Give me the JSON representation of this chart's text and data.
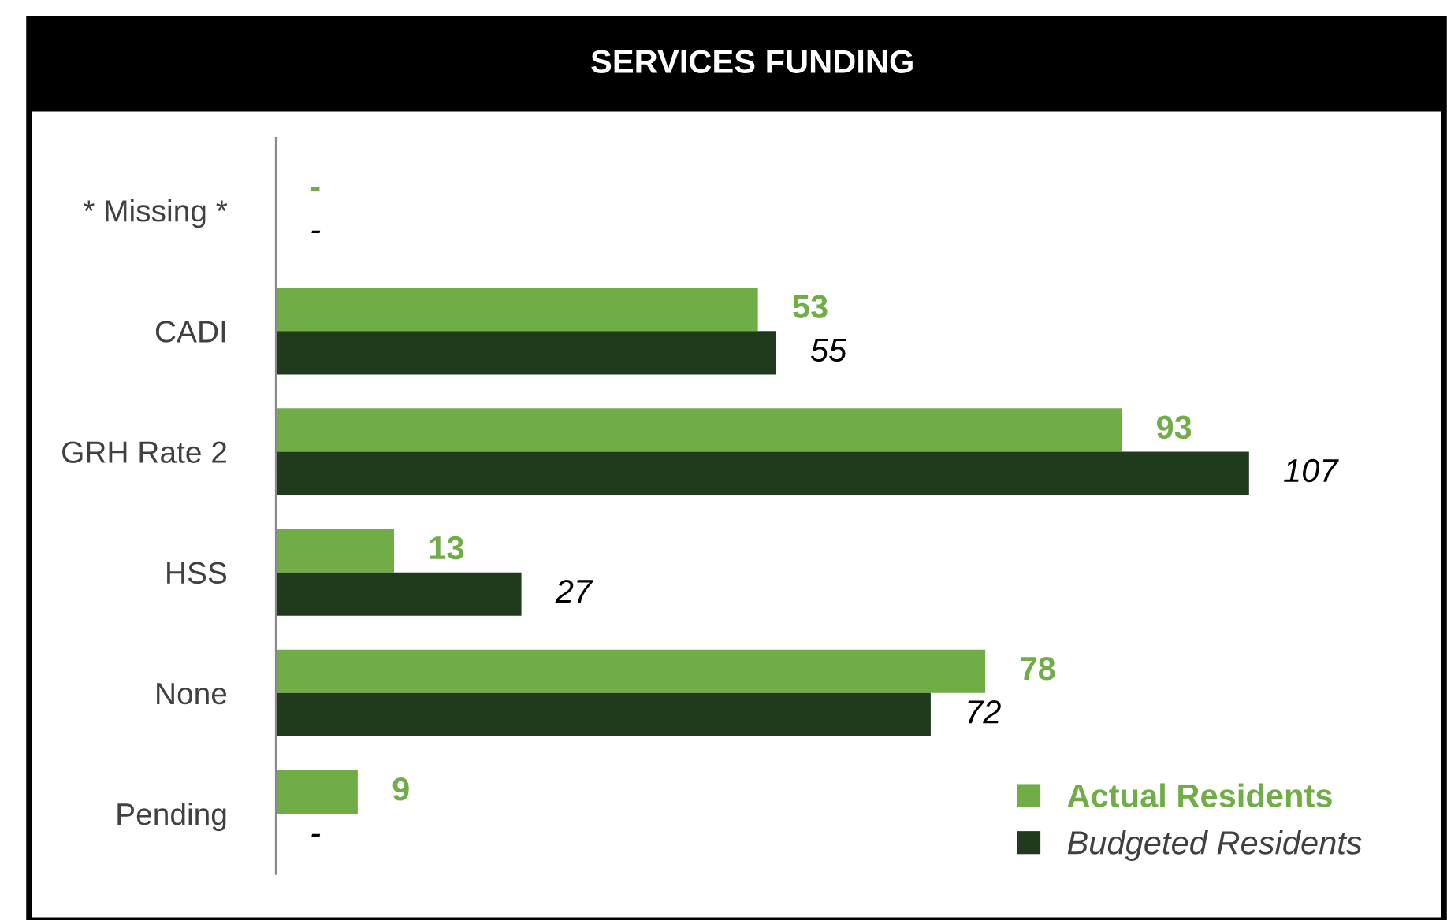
{
  "chart_data": {
    "type": "bar",
    "orientation": "horizontal",
    "title": "SERVICES FUNDING",
    "categories": [
      "* Missing *",
      "CADI",
      "GRH Rate 2",
      "HSS",
      "None",
      "Pending"
    ],
    "series": [
      {
        "name": "Actual Residents",
        "color": "#70ad47",
        "values": [
          null,
          53,
          93,
          13,
          78,
          9
        ],
        "value_labels": [
          "-",
          "53",
          "93",
          "13",
          "78",
          "9"
        ]
      },
      {
        "name": "Budgeted Residents",
        "color": "#1f3b1c",
        "values": [
          null,
          55,
          107,
          27,
          72,
          null
        ],
        "value_labels": [
          "-",
          "55",
          "107",
          "27",
          "72",
          "-"
        ]
      }
    ],
    "legend": "bottom right",
    "grid": false
  }
}
